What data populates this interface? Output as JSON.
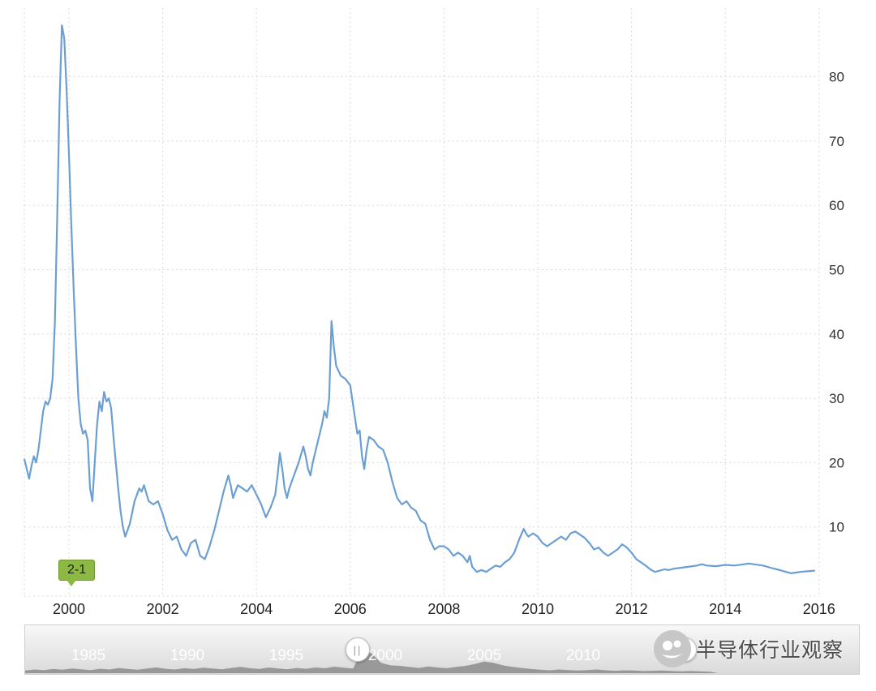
{
  "chart_data": {
    "type": "line",
    "title": "",
    "xlabel": "",
    "ylabel": "",
    "x_range": [
      1999.05,
      2016
    ],
    "y_range": [
      0,
      88
    ],
    "grid": "dashed",
    "legend": "none",
    "x_ticks": [
      2000,
      2002,
      2004,
      2006,
      2008,
      2010,
      2012,
      2014,
      2016
    ],
    "y_ticks": [
      10,
      20,
      30,
      40,
      50,
      60,
      70,
      80
    ],
    "series": [
      {
        "name": "value",
        "color": "#6b9fd4",
        "points": [
          [
            1999.05,
            20.5
          ],
          [
            1999.1,
            19
          ],
          [
            1999.15,
            17.5
          ],
          [
            1999.2,
            19.5
          ],
          [
            1999.25,
            21
          ],
          [
            1999.3,
            20
          ],
          [
            1999.35,
            22
          ],
          [
            1999.4,
            25
          ],
          [
            1999.45,
            28
          ],
          [
            1999.5,
            29.5
          ],
          [
            1999.55,
            29
          ],
          [
            1999.6,
            30
          ],
          [
            1999.65,
            33
          ],
          [
            1999.7,
            42
          ],
          [
            1999.75,
            58
          ],
          [
            1999.8,
            76
          ],
          [
            1999.85,
            88
          ],
          [
            1999.9,
            86
          ],
          [
            1999.95,
            78
          ],
          [
            2000.0,
            68
          ],
          [
            2000.05,
            57
          ],
          [
            2000.1,
            47
          ],
          [
            2000.15,
            38
          ],
          [
            2000.2,
            30
          ],
          [
            2000.25,
            26
          ],
          [
            2000.3,
            24.5
          ],
          [
            2000.35,
            25
          ],
          [
            2000.4,
            23.5
          ],
          [
            2000.45,
            16
          ],
          [
            2000.5,
            14
          ],
          [
            2000.55,
            20
          ],
          [
            2000.6,
            26
          ],
          [
            2000.65,
            29.5
          ],
          [
            2000.7,
            28
          ],
          [
            2000.75,
            31
          ],
          [
            2000.8,
            29.5
          ],
          [
            2000.85,
            30
          ],
          [
            2000.9,
            28.5
          ],
          [
            2000.95,
            24
          ],
          [
            2001.0,
            20
          ],
          [
            2001.05,
            16
          ],
          [
            2001.1,
            12.5
          ],
          [
            2001.15,
            10
          ],
          [
            2001.2,
            8.5
          ],
          [
            2001.3,
            10.5
          ],
          [
            2001.4,
            14
          ],
          [
            2001.5,
            16
          ],
          [
            2001.55,
            15.5
          ],
          [
            2001.6,
            16.5
          ],
          [
            2001.7,
            14
          ],
          [
            2001.8,
            13.5
          ],
          [
            2001.9,
            14
          ],
          [
            2002.0,
            12
          ],
          [
            2002.1,
            9.5
          ],
          [
            2002.2,
            8
          ],
          [
            2002.3,
            8.5
          ],
          [
            2002.4,
            6.5
          ],
          [
            2002.5,
            5.5
          ],
          [
            2002.6,
            7.5
          ],
          [
            2002.7,
            8
          ],
          [
            2002.8,
            5.5
          ],
          [
            2002.9,
            5
          ],
          [
            2003.0,
            7
          ],
          [
            2003.1,
            9.5
          ],
          [
            2003.2,
            12.5
          ],
          [
            2003.3,
            15.5
          ],
          [
            2003.4,
            18
          ],
          [
            2003.45,
            16.5
          ],
          [
            2003.5,
            14.5
          ],
          [
            2003.6,
            16.5
          ],
          [
            2003.7,
            16
          ],
          [
            2003.8,
            15.5
          ],
          [
            2003.9,
            16.5
          ],
          [
            2004.0,
            15
          ],
          [
            2004.1,
            13.5
          ],
          [
            2004.2,
            11.5
          ],
          [
            2004.3,
            13
          ],
          [
            2004.4,
            15
          ],
          [
            2004.45,
            18
          ],
          [
            2004.5,
            21.5
          ],
          [
            2004.55,
            19
          ],
          [
            2004.6,
            16
          ],
          [
            2004.65,
            14.5
          ],
          [
            2004.7,
            16
          ],
          [
            2004.8,
            18
          ],
          [
            2004.9,
            20
          ],
          [
            2005.0,
            22.5
          ],
          [
            2005.05,
            21
          ],
          [
            2005.1,
            19
          ],
          [
            2005.15,
            18
          ],
          [
            2005.2,
            20
          ],
          [
            2005.3,
            23
          ],
          [
            2005.4,
            26
          ],
          [
            2005.45,
            28
          ],
          [
            2005.5,
            27
          ],
          [
            2005.55,
            30
          ],
          [
            2005.6,
            42
          ],
          [
            2005.65,
            38
          ],
          [
            2005.7,
            35
          ],
          [
            2005.8,
            33.5
          ],
          [
            2005.9,
            33
          ],
          [
            2006.0,
            32
          ],
          [
            2006.1,
            27
          ],
          [
            2006.15,
            24.5
          ],
          [
            2006.2,
            25
          ],
          [
            2006.25,
            21
          ],
          [
            2006.3,
            19
          ],
          [
            2006.35,
            22
          ],
          [
            2006.4,
            24
          ],
          [
            2006.5,
            23.5
          ],
          [
            2006.6,
            22.5
          ],
          [
            2006.7,
            22
          ],
          [
            2006.8,
            20
          ],
          [
            2006.9,
            17
          ],
          [
            2007.0,
            14.5
          ],
          [
            2007.1,
            13.5
          ],
          [
            2007.2,
            14
          ],
          [
            2007.3,
            13
          ],
          [
            2007.4,
            12.5
          ],
          [
            2007.5,
            11
          ],
          [
            2007.6,
            10.5
          ],
          [
            2007.7,
            8
          ],
          [
            2007.8,
            6.5
          ],
          [
            2007.9,
            7
          ],
          [
            2008.0,
            7
          ],
          [
            2008.1,
            6.5
          ],
          [
            2008.2,
            5.5
          ],
          [
            2008.3,
            6
          ],
          [
            2008.4,
            5.5
          ],
          [
            2008.5,
            4.5
          ],
          [
            2008.55,
            5.5
          ],
          [
            2008.6,
            3.8
          ],
          [
            2008.7,
            3
          ],
          [
            2008.8,
            3.3
          ],
          [
            2008.9,
            3
          ],
          [
            2009.0,
            3.5
          ],
          [
            2009.1,
            4
          ],
          [
            2009.2,
            3.8
          ],
          [
            2009.3,
            4.5
          ],
          [
            2009.4,
            5
          ],
          [
            2009.5,
            6
          ],
          [
            2009.6,
            8
          ],
          [
            2009.7,
            9.7
          ],
          [
            2009.75,
            9
          ],
          [
            2009.8,
            8.5
          ],
          [
            2009.9,
            9
          ],
          [
            2010.0,
            8.5
          ],
          [
            2010.1,
            7.5
          ],
          [
            2010.2,
            7
          ],
          [
            2010.3,
            7.5
          ],
          [
            2010.4,
            8
          ],
          [
            2010.5,
            8.5
          ],
          [
            2010.6,
            8
          ],
          [
            2010.7,
            9
          ],
          [
            2010.8,
            9.3
          ],
          [
            2010.9,
            8.8
          ],
          [
            2011.0,
            8.3
          ],
          [
            2011.1,
            7.5
          ],
          [
            2011.2,
            6.5
          ],
          [
            2011.3,
            6.8
          ],
          [
            2011.4,
            6
          ],
          [
            2011.5,
            5.5
          ],
          [
            2011.6,
            6
          ],
          [
            2011.7,
            6.5
          ],
          [
            2011.8,
            7.3
          ],
          [
            2011.9,
            6.8
          ],
          [
            2012.0,
            6
          ],
          [
            2012.1,
            5
          ],
          [
            2012.2,
            4.5
          ],
          [
            2012.3,
            4
          ],
          [
            2012.4,
            3.4
          ],
          [
            2012.5,
            3
          ],
          [
            2012.6,
            3.2
          ],
          [
            2012.7,
            3.4
          ],
          [
            2012.8,
            3.3
          ],
          [
            2012.9,
            3.5
          ],
          [
            2013.0,
            3.6
          ],
          [
            2013.2,
            3.8
          ],
          [
            2013.4,
            4
          ],
          [
            2013.5,
            4.2
          ],
          [
            2013.6,
            4
          ],
          [
            2013.8,
            3.9
          ],
          [
            2014.0,
            4.1
          ],
          [
            2014.2,
            4
          ],
          [
            2014.4,
            4.2
          ],
          [
            2014.5,
            4.3
          ],
          [
            2014.6,
            4.2
          ],
          [
            2014.8,
            4
          ],
          [
            2015.0,
            3.6
          ],
          [
            2015.1,
            3.4
          ],
          [
            2015.2,
            3.2
          ],
          [
            2015.3,
            3
          ],
          [
            2015.4,
            2.8
          ],
          [
            2015.5,
            2.9
          ],
          [
            2015.6,
            3
          ],
          [
            2015.75,
            3.1
          ],
          [
            2015.9,
            3.2
          ]
        ]
      }
    ]
  },
  "badge": {
    "label": "2-1",
    "color": "#8cb944"
  },
  "navigator": {
    "years": [
      "1985",
      "1990",
      "1995",
      "2000",
      "2005",
      "2010"
    ],
    "handle_glyph": "||",
    "silhouette": [
      0.1,
      0.14,
      0.12,
      0.16,
      0.13,
      0.18,
      0.15,
      0.12,
      0.17,
      0.14,
      0.2,
      0.16,
      0.13,
      0.18,
      0.22,
      0.17,
      0.14,
      0.19,
      0.16,
      0.21,
      0.18,
      0.15,
      0.2,
      0.24,
      0.19,
      0.16,
      0.22,
      0.18,
      0.15,
      0.2,
      0.17,
      0.22,
      0.19,
      0.25,
      0.21,
      0.18,
      0.9,
      0.75,
      0.4,
      0.3,
      0.28,
      0.24,
      0.2,
      0.26,
      0.22,
      0.19,
      0.24,
      0.28,
      0.35,
      0.45,
      0.4,
      0.3,
      0.24,
      0.2,
      0.16,
      0.13,
      0.11,
      0.14,
      0.12,
      0.1,
      0.12,
      0.14,
      0.11,
      0.09,
      0.11,
      0.1,
      0.08,
      0.09,
      0.1,
      0.08,
      0.07,
      0.08,
      0.07,
      0.06,
      0,
      0,
      0,
      0,
      0,
      0,
      0,
      0,
      0,
      0,
      0,
      0,
      0,
      0,
      0,
      0
    ]
  },
  "watermark": {
    "text": "半导体行业观察"
  }
}
